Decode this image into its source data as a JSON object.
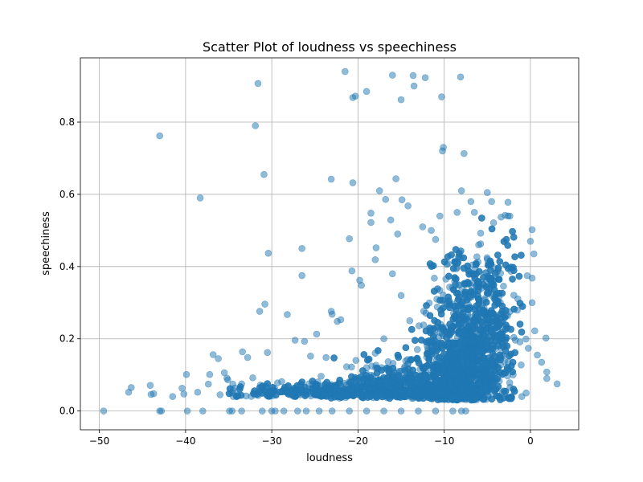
{
  "chart_data": {
    "type": "scatter",
    "title": "Scatter Plot of loudness vs speechiness",
    "xlabel": "loudness",
    "ylabel": "speechiness",
    "xlim": [
      -52.2,
      5.6
    ],
    "ylim": [
      -0.052,
      0.978
    ],
    "xticks": [
      -50,
      -40,
      -30,
      -20,
      -10,
      0
    ],
    "yticks": [
      0.0,
      0.2,
      0.4,
      0.6,
      0.8
    ],
    "xtick_labels": [
      "−50",
      "−40",
      "−30",
      "−20",
      "−10",
      "0"
    ],
    "ytick_labels": [
      "0.0",
      "0.2",
      "0.4",
      "0.6",
      "0.8"
    ],
    "grid": true,
    "marker_color": "#1f77b4",
    "marker_alpha": 0.5,
    "series": [
      {
        "points": [
          [
            -49.5,
            0.0
          ],
          [
            -46.3,
            0.065
          ],
          [
            -46.6,
            0.052
          ],
          [
            -44.1,
            0.071
          ],
          [
            -44.0,
            0.046
          ],
          [
            -43.7,
            0.048
          ],
          [
            -43.0,
            0.762
          ],
          [
            -43.0,
            0.0
          ],
          [
            -42.8,
            0.0
          ],
          [
            -41.5,
            0.04
          ],
          [
            -40.4,
            0.063
          ],
          [
            -40.2,
            0.047
          ],
          [
            -39.9,
            0.101
          ],
          [
            -39.8,
            0.0
          ],
          [
            -38.6,
            0.052
          ],
          [
            -38.3,
            0.59
          ],
          [
            -38.0,
            0.0
          ],
          [
            -37.2,
            0.101
          ],
          [
            -36.8,
            0.156
          ],
          [
            -36.2,
            0.145
          ],
          [
            -35.5,
            0.106
          ],
          [
            -35.2,
            0.091
          ],
          [
            -34.9,
            0.0
          ],
          [
            -34.6,
            0.0
          ],
          [
            -33.5,
            0.0
          ],
          [
            -33.4,
            0.164
          ],
          [
            -32.8,
            0.148
          ],
          [
            -32.2,
            0.092
          ],
          [
            -31.9,
            0.79
          ],
          [
            -31.6,
            0.907
          ],
          [
            -31.1,
            0.0
          ],
          [
            -30.9,
            0.655
          ],
          [
            -30.8,
            0.296
          ],
          [
            -30.4,
            0.437
          ],
          [
            -31.4,
            0.276
          ],
          [
            -30.5,
            0.162
          ],
          [
            -30.0,
            0.0
          ],
          [
            -29.6,
            0.0
          ],
          [
            -28.6,
            0.0
          ],
          [
            -28.2,
            0.267
          ],
          [
            -27.3,
            0.196
          ],
          [
            -26.5,
            0.45
          ],
          [
            -26.5,
            0.375
          ],
          [
            -26.2,
            0.193
          ],
          [
            -25.5,
            0.152
          ],
          [
            -24.8,
            0.213
          ],
          [
            -24.5,
            0.0
          ],
          [
            -23.7,
            0.148
          ],
          [
            -23.1,
            0.642
          ],
          [
            -23.1,
            0.276
          ],
          [
            -23.0,
            0.268
          ],
          [
            -22.4,
            0.248
          ],
          [
            -22.0,
            0.253
          ],
          [
            -21.5,
            0.94
          ],
          [
            -21.0,
            0.477
          ],
          [
            -20.7,
            0.388
          ],
          [
            -20.6,
            0.868
          ],
          [
            -20.3,
            0.872
          ],
          [
            -20.6,
            0.632
          ],
          [
            -19.8,
            0.362
          ],
          [
            -19.6,
            0.348
          ],
          [
            -19.0,
            0.885
          ],
          [
            -18.5,
            0.548
          ],
          [
            -18.5,
            0.522
          ],
          [
            -18.0,
            0.419
          ],
          [
            -17.9,
            0.452
          ],
          [
            -17.5,
            0.61
          ],
          [
            -16.8,
            0.586
          ],
          [
            -16.2,
            0.529
          ],
          [
            -16.0,
            0.93
          ],
          [
            -15.6,
            0.643
          ],
          [
            -15.4,
            0.49
          ],
          [
            -15.0,
            0.862
          ],
          [
            -14.9,
            0.585
          ],
          [
            -14.2,
            0.568
          ],
          [
            -13.6,
            0.929
          ],
          [
            -13.5,
            0.9
          ],
          [
            -12.2,
            0.923
          ],
          [
            -12.5,
            0.51
          ],
          [
            -11.5,
            0.5
          ],
          [
            -11.0,
            0.475
          ],
          [
            -10.5,
            0.54
          ],
          [
            -10.3,
            0.87
          ],
          [
            -10.1,
            0.73
          ],
          [
            -10.2,
            0.72
          ],
          [
            -8.5,
            0.55
          ],
          [
            -8.1,
            0.925
          ],
          [
            -8.0,
            0.61
          ],
          [
            -7.7,
            0.713
          ],
          [
            -6.9,
            0.58
          ],
          [
            -6.5,
            0.55
          ],
          [
            -5.0,
            0.605
          ],
          [
            -4.5,
            0.58
          ],
          [
            -3.4,
            0.537
          ],
          [
            -2.6,
            0.578
          ],
          [
            -2.6,
            0.54
          ],
          [
            0.2,
            0.502
          ],
          [
            0.4,
            0.435
          ],
          [
            0.2,
            0.368
          ],
          [
            0.8,
            0.155
          ],
          [
            1.3,
            0.135
          ],
          [
            1.8,
            0.202
          ],
          [
            1.9,
            0.108
          ],
          [
            1.9,
            0.09
          ],
          [
            3.1,
            0.075
          ],
          [
            0.5,
            0.222
          ],
          [
            0.2,
            0.3
          ],
          [
            0.0,
            0.47
          ],
          [
            -0.5,
            0.05
          ],
          [
            -1.0,
            0.04
          ],
          [
            -2.0,
            0.1
          ],
          [
            -3.0,
            0.18
          ],
          [
            -4.0,
            0.3
          ],
          [
            -5.0,
            0.42
          ],
          [
            -6.0,
            0.46
          ],
          [
            -7.0,
            0.35
          ],
          [
            -8.0,
            0.2
          ],
          [
            -9.0,
            0.12
          ],
          [
            -10.0,
            0.08
          ],
          [
            -11.0,
            0.06
          ],
          [
            -12.0,
            0.05
          ],
          [
            -13.0,
            0.14
          ],
          [
            -14.0,
            0.25
          ],
          [
            -15.0,
            0.32
          ],
          [
            -16.0,
            0.38
          ],
          [
            -17.0,
            0.2
          ],
          [
            -18.0,
            0.16
          ],
          [
            -19.0,
            0.12
          ],
          [
            -20.0,
            0.09
          ],
          [
            -21.0,
            0.075
          ],
          [
            -22.0,
            0.07
          ],
          [
            -24.0,
            0.06
          ],
          [
            -26.0,
            0.055
          ],
          [
            -28.0,
            0.05
          ],
          [
            -30.0,
            0.05
          ],
          [
            -32.0,
            0.045
          ],
          [
            -34.0,
            0.045
          ],
          [
            -36.0,
            0.045
          ],
          [
            -23.0,
            0.0
          ],
          [
            -21.0,
            0.0
          ],
          [
            -19.0,
            0.0
          ],
          [
            -17.0,
            0.0
          ],
          [
            -15.0,
            0.0
          ],
          [
            -13.0,
            0.0
          ],
          [
            -11.0,
            0.0
          ],
          [
            -9.0,
            0.0
          ],
          [
            -8.0,
            0.0
          ],
          [
            -7.5,
            0.0
          ],
          [
            -26.0,
            0.0
          ],
          [
            -27.0,
            0.0
          ]
        ]
      }
    ]
  }
}
